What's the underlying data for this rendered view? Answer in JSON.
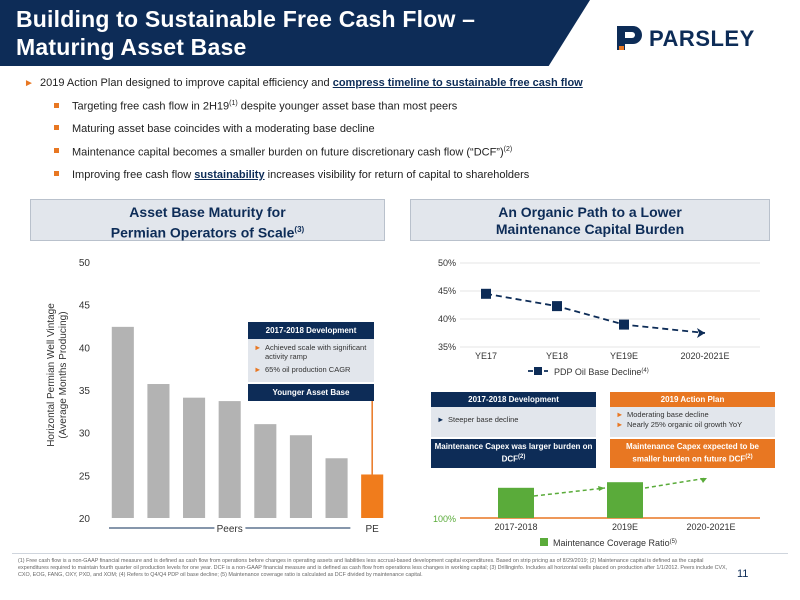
{
  "header": {
    "title_line1": "Building to Sustainable Free Cash Flow –",
    "title_line2": "Maturing Asset Base",
    "logo_text": "PARSLEY"
  },
  "bullets": {
    "main_lead": "2019 Action Plan designed to improve capital efficiency and ",
    "main_bold": "compress timeline to sustainable free cash flow",
    "sub1_a": "Targeting free cash flow in 2H19",
    "sub1_sup": "(1)",
    "sub1_b": " despite younger asset base than most peers",
    "sub2": "Maturing asset base coincides with a moderating base decline",
    "sub3_a": "Maintenance capital becomes a smaller burden on future discretionary cash flow (“DCF”)",
    "sub3_sup": "(2)",
    "sub4_a": "Improving free cash flow ",
    "sub4_bold": "sustainability",
    "sub4_b": " increases visibility for return of capital to shareholders"
  },
  "left_section": {
    "title_line1": "Asset Base Maturity for",
    "title_line2": "Permian Operators of Scale",
    "title_sup": "(3)",
    "ylabel_line1": "Horizontal Permian Well Vintage",
    "ylabel_line2": "(Average Months Producing)",
    "peers_label": "Peers",
    "pe_label": "PE",
    "dev_box": {
      "header": "2017-2018 Development",
      "item1": "Achieved scale with significant activity ramp",
      "item2": "65% oil production CAGR",
      "footer": "Younger Asset Base"
    }
  },
  "right_section": {
    "title_line1": "An Organic Path to a Lower",
    "title_line2": "Maintenance Capital Burden",
    "box_a": {
      "header": "2017-2018 Development",
      "item1": "Steeper base decline",
      "footer": "Maintenance Capex was larger burden on DCF"
    },
    "box_b": {
      "header": "2019 Action Plan",
      "item1": "Moderating base decline",
      "item2": "Nearly 25% organic oil growth YoY",
      "footer": "Maintenance Capex expected to be smaller burden on future DCF"
    }
  },
  "chart_data": [
    {
      "type": "bar",
      "categories": [
        "",
        "",
        "",
        "",
        "",
        "",
        "",
        "PE"
      ],
      "values": [
        42.4,
        35.7,
        34.1,
        33.7,
        31.0,
        29.7,
        27.0,
        25.1
      ],
      "group_label": "Peers",
      "ylim": [
        20,
        50
      ],
      "yticks": [
        20,
        25,
        30,
        35,
        40,
        45,
        50
      ],
      "colors": {
        "peers": "#b3b3b3",
        "pe": "#f07c1c"
      }
    },
    {
      "type": "line",
      "categories": [
        "YE17",
        "YE18",
        "YE19E",
        "2020-2021E"
      ],
      "values": [
        44.5,
        42.3,
        39.0,
        37.5
      ],
      "series_name": "PDP Oil Base Decline",
      "series_sup": "(4)",
      "ylim": [
        35,
        50
      ],
      "yticks": [
        "35%",
        "40%",
        "45%",
        "50%"
      ],
      "color": "#0d2c57"
    },
    {
      "type": "bar",
      "categories": [
        "2017-2018",
        "2019E",
        "2020-2021E"
      ],
      "values": [
        2.3,
        2.7,
        null
      ],
      "series_name": "Maintenance Coverage Ratio",
      "series_sup": "(5)",
      "ytick_label": "100%",
      "color": "#5aab3a"
    }
  ],
  "footnote": "(1) Free cash flow is a non-GAAP financial measure and is defined as cash flow from operations before changes in operating assets and liabilities less accrual-based development capital expenditures. Based on strip pricing as of 8/29/2019; (2) Maintenance capital is defined as the capital expenditures required to maintain fourth quarter oil production levels for one year. DCF is a non-GAAP financial measure and is defined as cash flow from operations less changes in working capital; (3) Drillinginfo. Includes all horizontal wells placed on production after 1/1/2012. Peers include CVX, CXO, EOG, FANG, OXY, PXD, and XOM; (4) Refers to Q4/Q4 PDP oil base decline; (5) Maintenance coverage ratio is calculated as DCF divided by maintenance capital.",
  "page_number": "11"
}
